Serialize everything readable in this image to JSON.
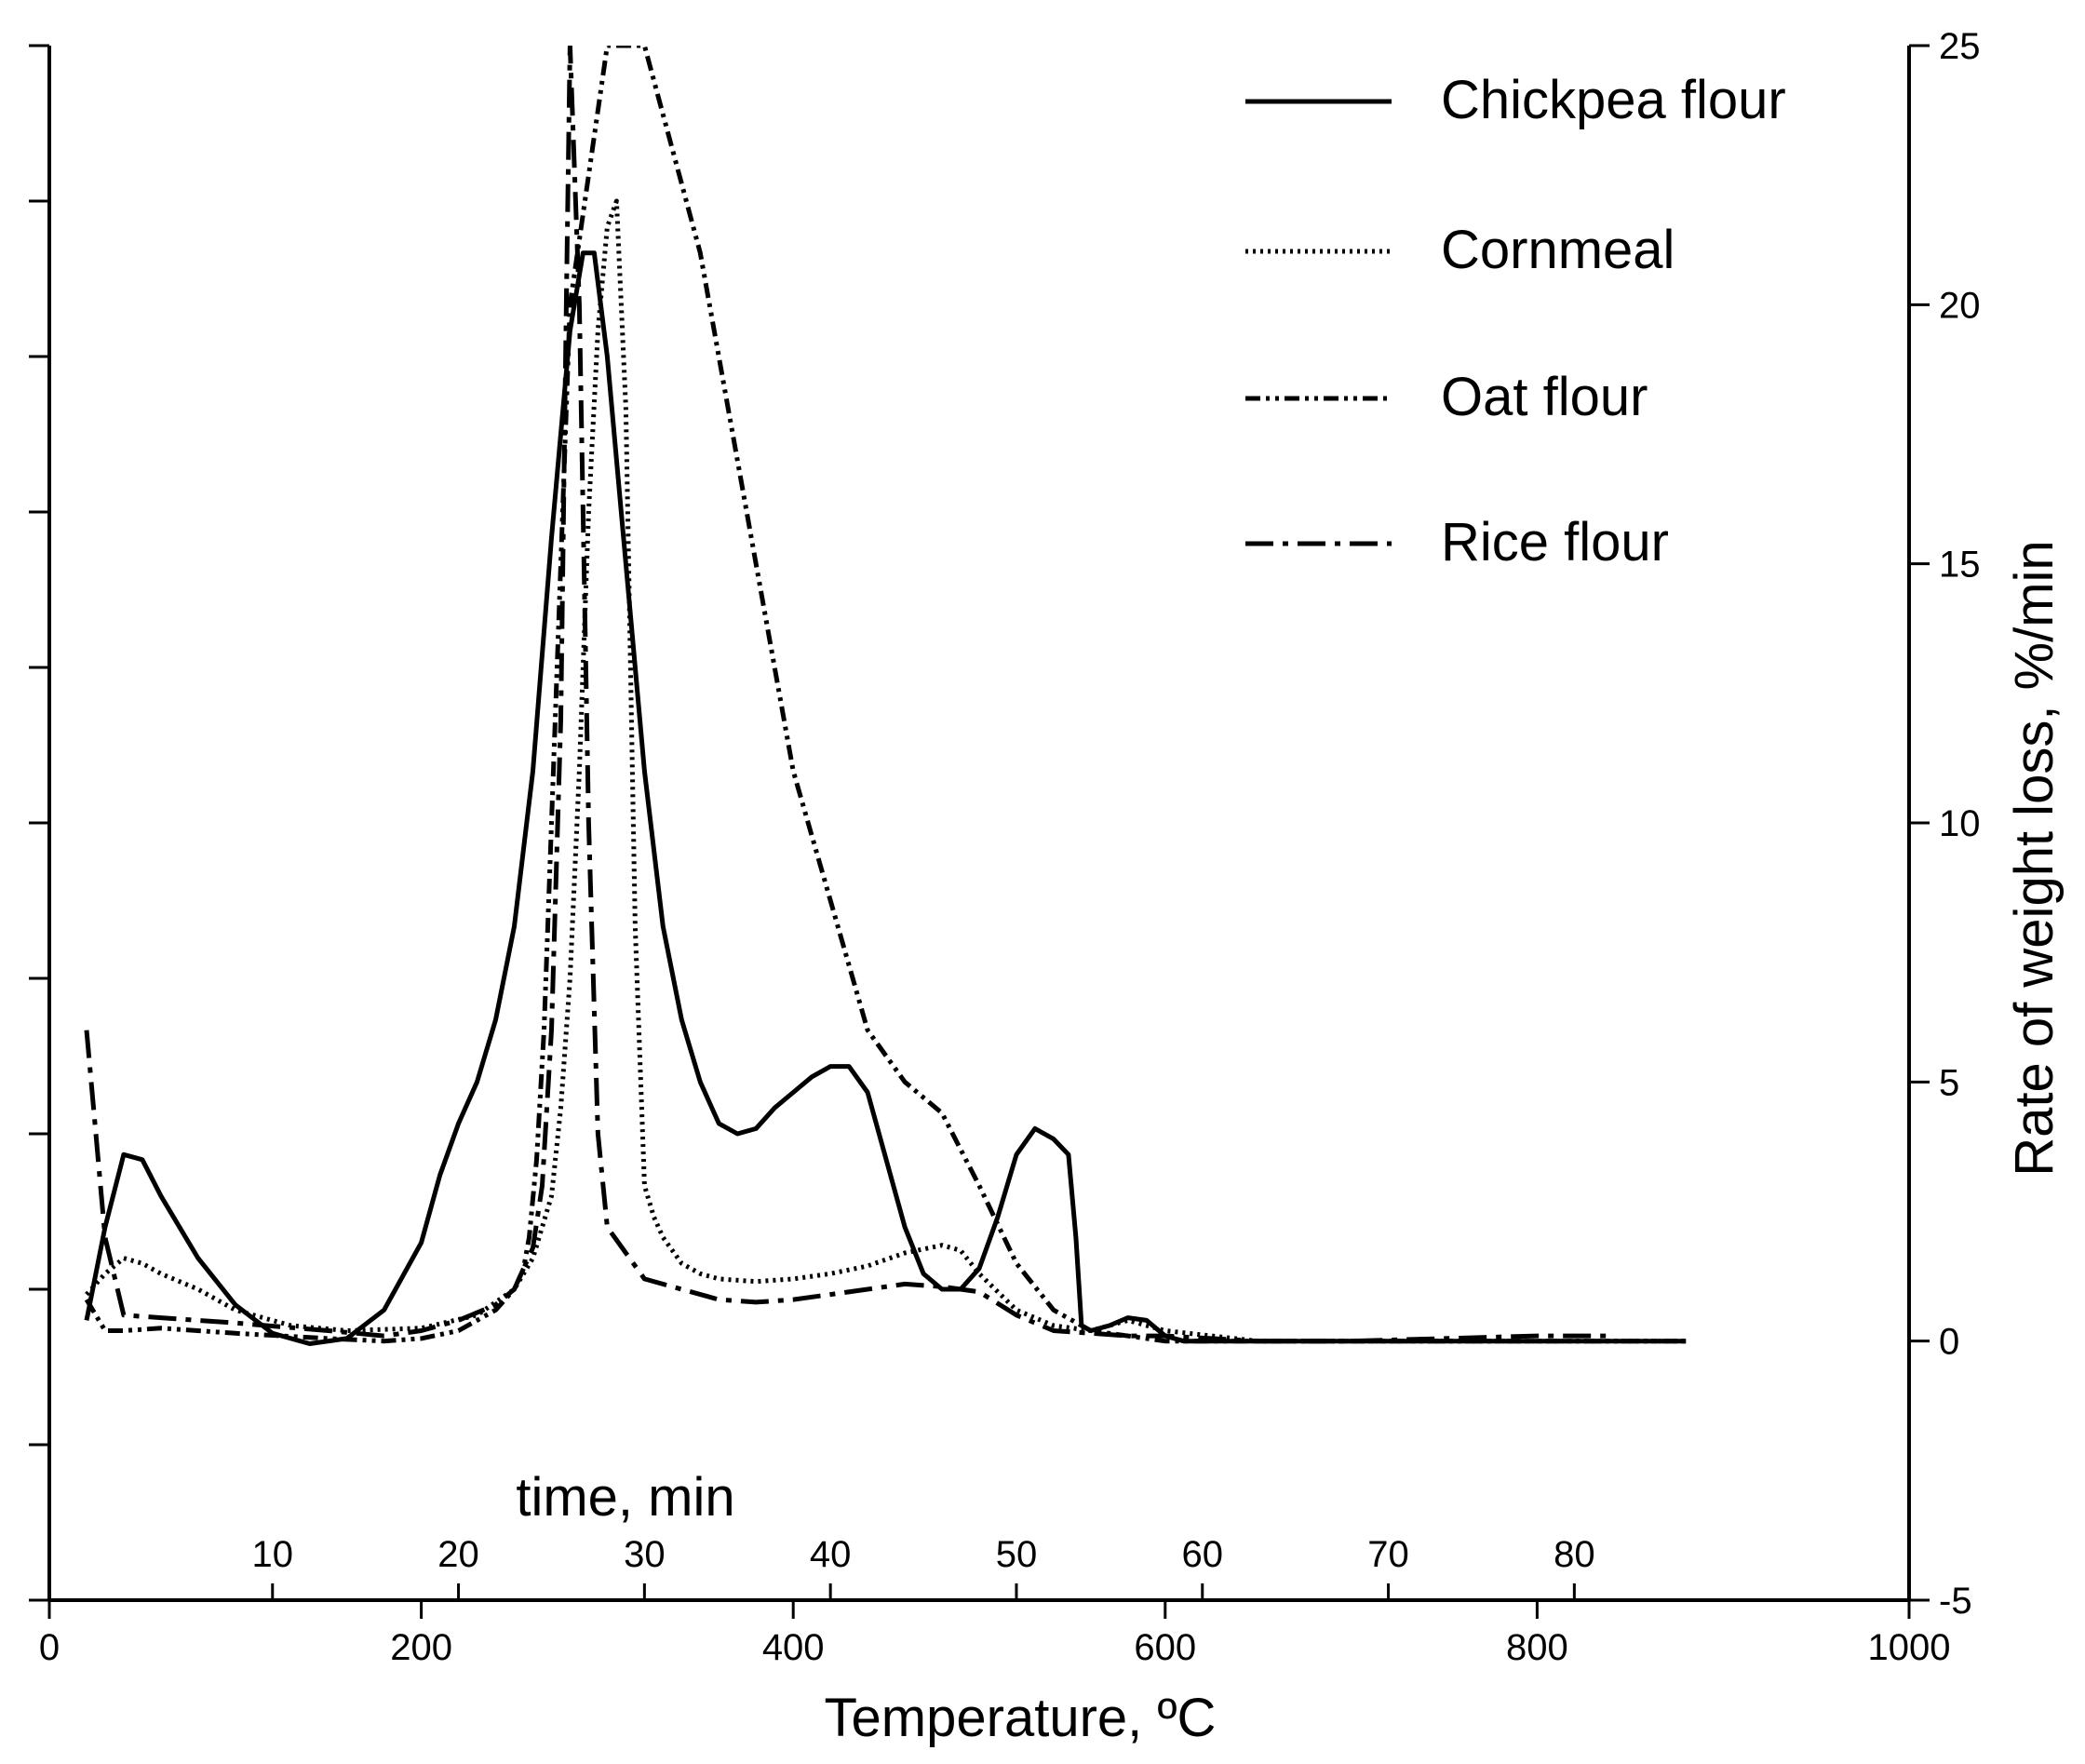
{
  "chart_data": {
    "type": "line",
    "title": "",
    "xlabel": "Temperature, ºC",
    "ylabel": "Rate of weight loss,  %/min",
    "secondary_xlabel": "time, min",
    "xlim": [
      0,
      1000
    ],
    "ylim": [
      -5,
      25
    ],
    "x_ticks": [
      0,
      200,
      400,
      600,
      800,
      1000
    ],
    "y_ticks": [
      -5,
      0,
      5,
      10,
      15,
      20,
      25
    ],
    "time_ticks": [
      10,
      20,
      30,
      40,
      50,
      60,
      70,
      80
    ],
    "grid": false,
    "legend_position": "top-right",
    "series": [
      {
        "name": "Chickpea flour",
        "style": "solid",
        "x": [
          20,
          30,
          40,
          50,
          60,
          80,
          100,
          120,
          140,
          160,
          180,
          200,
          210,
          220,
          230,
          240,
          250,
          260,
          270,
          280,
          287,
          293,
          300,
          310,
          320,
          330,
          340,
          350,
          360,
          370,
          380,
          390,
          400,
          410,
          420,
          430,
          440,
          450,
          460,
          470,
          480,
          490,
          500,
          510,
          520,
          530,
          540,
          548,
          552,
          555,
          560,
          570,
          580,
          590,
          600,
          610,
          650,
          700,
          800,
          880
        ],
        "values": [
          0.4,
          2.2,
          3.6,
          3.5,
          2.8,
          1.6,
          0.7,
          0.15,
          -0.05,
          0.05,
          0.6,
          1.9,
          3.2,
          4.2,
          5.0,
          6.2,
          8.0,
          11.0,
          15.5,
          19.5,
          21.0,
          21.0,
          19.0,
          15.0,
          11.0,
          8.0,
          6.2,
          5.0,
          4.2,
          4.0,
          4.1,
          4.5,
          4.8,
          5.1,
          5.3,
          5.3,
          4.8,
          3.5,
          2.2,
          1.3,
          1.0,
          1.0,
          1.4,
          2.4,
          3.6,
          4.1,
          3.9,
          3.6,
          2.0,
          0.3,
          0.2,
          0.3,
          0.45,
          0.4,
          0.1,
          0.0,
          0.0,
          0.0,
          0.0,
          0.0
        ]
      },
      {
        "name": "Cornmeal",
        "style": "dotted",
        "x": [
          20,
          30,
          40,
          50,
          60,
          80,
          100,
          130,
          160,
          200,
          230,
          250,
          260,
          270,
          275,
          280,
          285,
          290,
          295,
          300,
          305,
          310,
          315,
          320,
          325,
          330,
          340,
          350,
          360,
          380,
          400,
          420,
          440,
          460,
          480,
          490,
          500,
          520,
          540,
          560,
          580,
          600,
          650,
          700,
          800,
          880
        ],
        "values": [
          0.9,
          1.3,
          1.6,
          1.5,
          1.3,
          1.0,
          0.6,
          0.3,
          0.2,
          0.25,
          0.5,
          1.0,
          1.6,
          2.8,
          4.5,
          7.0,
          11.0,
          16.0,
          19.5,
          21.5,
          22.0,
          18.0,
          8.0,
          3.0,
          2.4,
          2.0,
          1.5,
          1.3,
          1.2,
          1.15,
          1.2,
          1.3,
          1.45,
          1.7,
          1.85,
          1.75,
          1.3,
          0.6,
          0.3,
          0.2,
          0.4,
          0.2,
          0.0,
          0.0,
          0.0,
          0.0
        ]
      },
      {
        "name": "Oat flour",
        "style": "dash-dot-dot",
        "x": [
          20,
          30,
          40,
          60,
          100,
          150,
          180,
          200,
          220,
          240,
          250,
          255,
          258,
          262,
          266,
          270,
          275,
          280,
          300,
          320,
          350,
          380,
          400,
          420,
          440,
          460,
          480,
          500,
          520,
          540,
          560,
          580,
          600,
          650,
          700,
          800,
          880
        ],
        "values": [
          0.8,
          0.2,
          0.2,
          0.25,
          0.15,
          0.05,
          0.0,
          0.05,
          0.2,
          0.6,
          1.0,
          1.4,
          2.0,
          3.5,
          6.0,
          10.0,
          15.0,
          20.0,
          25.0,
          25.0,
          21.0,
          15.0,
          11.0,
          8.5,
          6.0,
          5.0,
          4.4,
          3.0,
          1.5,
          0.6,
          0.2,
          0.1,
          0.0,
          0.0,
          0.0,
          0.0,
          0.0
        ]
      },
      {
        "name": "Rice flour",
        "style": "dash-dot",
        "x": [
          20,
          25,
          30,
          40,
          60,
          100,
          150,
          180,
          200,
          220,
          240,
          250,
          260,
          265,
          270,
          275,
          278,
          280,
          285,
          290,
          295,
          300,
          320,
          340,
          360,
          380,
          400,
          420,
          440,
          460,
          480,
          500,
          520,
          540,
          560,
          580,
          600,
          650,
          700,
          800,
          840
        ],
        "values": [
          6.0,
          4.0,
          2.0,
          0.5,
          0.45,
          0.35,
          0.2,
          0.1,
          0.2,
          0.4,
          0.7,
          1.0,
          1.8,
          3.0,
          6.0,
          12.0,
          20.0,
          25.0,
          20.0,
          10.0,
          4.0,
          2.2,
          1.2,
          1.0,
          0.8,
          0.75,
          0.8,
          0.9,
          1.0,
          1.1,
          1.05,
          0.95,
          0.5,
          0.2,
          0.15,
          0.1,
          0.1,
          0.0,
          0.0,
          0.1,
          0.1
        ]
      }
    ]
  },
  "colors": {
    "line": "#000000",
    "background": "#ffffff"
  }
}
